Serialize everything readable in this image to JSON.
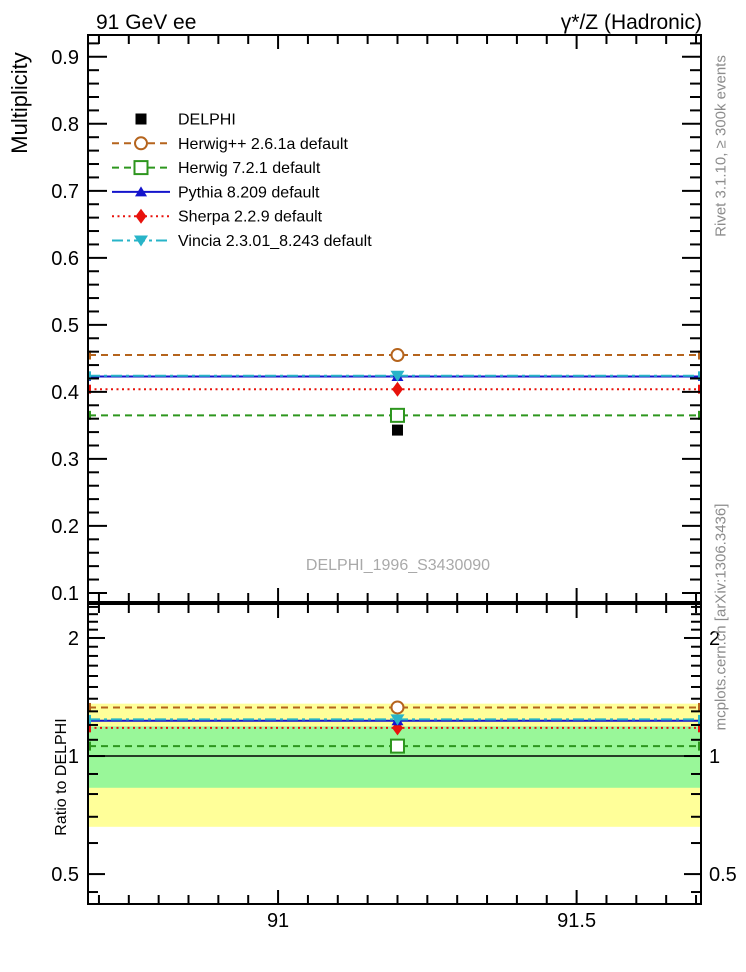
{
  "header": {
    "title_left": "91 GeV ee",
    "title_right": "γ*/Z (Hadronic)"
  },
  "side_notes": {
    "top_right": "Rivet 3.1.10, ≥ 300k events",
    "bottom_right": "mcplots.cern.ch [arXiv:1306.3436]"
  },
  "watermark": "DELPHI_1996_S3430090",
  "chart_data": [
    {
      "type": "line",
      "panel": "main",
      "ylabel": "Multiplicity",
      "xlim": [
        90.68,
        91.71
      ],
      "ylim": [
        0.085,
        0.934
      ],
      "x_major_ticks": [
        {
          "value": 91,
          "label": "91"
        },
        {
          "value": 91.5,
          "label": "91.5"
        }
      ],
      "x_minor_tick_step": 0.05,
      "y_major_ticks": [
        0.1,
        0.2,
        0.3,
        0.4,
        0.5,
        0.6,
        0.7,
        0.8,
        0.9
      ],
      "y_minor_tick_step": 0.02,
      "x": 91.2,
      "legend_position": "top-left-inside",
      "series": [
        {
          "name": "delphi",
          "label": "DELPHI",
          "role": "data",
          "color": "#000000",
          "marker": "square-filled",
          "line": "none",
          "value": 0.343
        },
        {
          "name": "herwigpp",
          "label": "Herwig++ 2.6.1a default",
          "role": "model",
          "color": "#b5641d",
          "marker": "circle-open",
          "line": "dashed",
          "value": 0.455
        },
        {
          "name": "herwig7",
          "label": "Herwig 7.2.1 default",
          "role": "model",
          "color": "#2d961e",
          "marker": "square-open",
          "line": "dashed",
          "value": 0.365
        },
        {
          "name": "pythia",
          "label": "Pythia 8.209 default",
          "role": "model",
          "color": "#1414cc",
          "marker": "triangle-up-filled",
          "line": "solid",
          "value": 0.423
        },
        {
          "name": "sherpa",
          "label": "Sherpa 2.2.9 default",
          "role": "model",
          "color": "#e8120c",
          "marker": "diamond-filled",
          "line": "dotted",
          "value": 0.404
        },
        {
          "name": "vincia",
          "label": "Vincia 2.3.01_8.243 default",
          "role": "model",
          "color": "#28b4c8",
          "marker": "triangle-down-filled",
          "line": "dashdot",
          "value": 0.424
        }
      ]
    },
    {
      "type": "ratio",
      "panel": "ratio",
      "ylabel": "Ratio to DELPHI",
      "yscale": "log",
      "xlim": [
        90.68,
        91.71
      ],
      "ylim": [
        0.417,
        2.456
      ],
      "y_major_ticks": [
        {
          "value": 0.5,
          "label": "0.5"
        },
        {
          "value": 1,
          "label": "1"
        },
        {
          "value": 2,
          "label": "2"
        }
      ],
      "y_minor_ticks": [
        0.45,
        0.6,
        0.7,
        0.8,
        0.9,
        1.1,
        1.2,
        1.3,
        1.4,
        1.5,
        1.6,
        1.7,
        1.8,
        1.9,
        2.1,
        2.2,
        2.3,
        2.4
      ],
      "x_major_ticks": [
        {
          "value": 91,
          "label": "91"
        },
        {
          "value": 91.5,
          "label": "91.5"
        }
      ],
      "x_minor_tick_step": 0.05,
      "reference_line": 1.0,
      "bands": [
        {
          "name": "uncertainty-band-outer",
          "color": "#ffff99",
          "low": 0.66,
          "high": 1.36
        },
        {
          "name": "uncertainty-band-inner",
          "color": "#99f799",
          "low": 0.83,
          "high": 1.19
        }
      ],
      "x": 91.2,
      "series": [
        {
          "name": "herwigpp",
          "value": 1.33
        },
        {
          "name": "herwig7",
          "value": 1.06
        },
        {
          "name": "pythia",
          "value": 1.23
        },
        {
          "name": "sherpa",
          "value": 1.18
        },
        {
          "name": "vincia",
          "value": 1.24
        }
      ]
    }
  ]
}
